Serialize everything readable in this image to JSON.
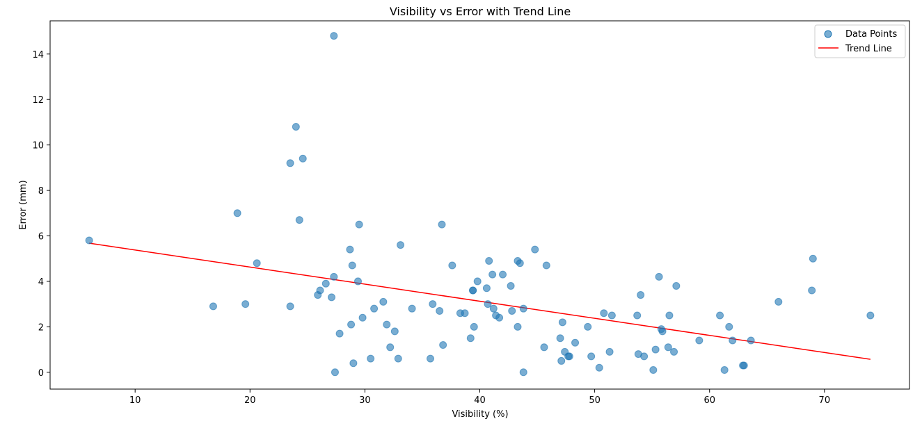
{
  "chart_data": {
    "type": "scatter",
    "title": "Visibility vs Error with Trend Line",
    "xlabel": "Visibility (%)",
    "ylabel": "Error (mm)",
    "xlim": [
      2.6,
      77.4
    ],
    "ylim": [
      -0.74,
      15.46
    ],
    "x_ticks": [
      10,
      20,
      30,
      40,
      50,
      60,
      70
    ],
    "y_ticks": [
      0,
      2,
      4,
      6,
      8,
      10,
      12,
      14
    ],
    "grid": false,
    "legend_position": "top-right",
    "colors": {
      "points": "#1f77b4",
      "trend": "#ff0000"
    },
    "series": [
      {
        "name": "Data Points",
        "kind": "scatter",
        "points": [
          [
            6.0,
            5.8
          ],
          [
            16.8,
            2.9
          ],
          [
            18.9,
            7.0
          ],
          [
            19.6,
            3.0
          ],
          [
            20.6,
            4.8
          ],
          [
            23.5,
            9.2
          ],
          [
            23.5,
            2.9
          ],
          [
            24.0,
            10.8
          ],
          [
            24.3,
            6.7
          ],
          [
            24.6,
            9.4
          ],
          [
            25.9,
            3.4
          ],
          [
            26.1,
            3.6
          ],
          [
            26.6,
            3.9
          ],
          [
            27.1,
            3.3
          ],
          [
            27.3,
            4.2
          ],
          [
            27.3,
            14.8
          ],
          [
            27.4,
            0.0
          ],
          [
            27.8,
            1.7
          ],
          [
            28.7,
            5.4
          ],
          [
            28.8,
            2.1
          ],
          [
            28.9,
            4.7
          ],
          [
            29.0,
            0.4
          ],
          [
            29.4,
            4.0
          ],
          [
            29.5,
            6.5
          ],
          [
            29.8,
            2.4
          ],
          [
            30.5,
            0.6
          ],
          [
            30.8,
            2.8
          ],
          [
            31.6,
            3.1
          ],
          [
            31.9,
            2.1
          ],
          [
            32.2,
            1.1
          ],
          [
            32.6,
            1.8
          ],
          [
            32.9,
            0.6
          ],
          [
            33.1,
            5.6
          ],
          [
            34.1,
            2.8
          ],
          [
            35.7,
            0.6
          ],
          [
            35.9,
            3.0
          ],
          [
            36.5,
            2.7
          ],
          [
            36.7,
            6.5
          ],
          [
            36.8,
            1.2
          ],
          [
            37.6,
            4.7
          ],
          [
            38.3,
            2.6
          ],
          [
            38.7,
            2.6
          ],
          [
            39.2,
            1.5
          ],
          [
            39.4,
            3.6
          ],
          [
            39.4,
            3.6
          ],
          [
            39.5,
            2.0
          ],
          [
            39.8,
            4.0
          ],
          [
            40.6,
            3.7
          ],
          [
            40.7,
            3.0
          ],
          [
            40.8,
            4.9
          ],
          [
            41.1,
            4.3
          ],
          [
            41.2,
            2.8
          ],
          [
            41.4,
            2.5
          ],
          [
            41.7,
            2.4
          ],
          [
            42.0,
            4.3
          ],
          [
            42.7,
            3.8
          ],
          [
            42.8,
            2.7
          ],
          [
            43.3,
            2.0
          ],
          [
            43.3,
            4.9
          ],
          [
            43.5,
            4.8
          ],
          [
            43.8,
            0.0
          ],
          [
            43.8,
            2.8
          ],
          [
            44.8,
            5.4
          ],
          [
            45.6,
            1.1
          ],
          [
            45.8,
            4.7
          ],
          [
            47.0,
            1.5
          ],
          [
            47.1,
            0.5
          ],
          [
            47.2,
            2.2
          ],
          [
            47.4,
            0.9
          ],
          [
            47.7,
            0.7
          ],
          [
            47.8,
            0.7
          ],
          [
            48.3,
            1.3
          ],
          [
            49.4,
            2.0
          ],
          [
            49.7,
            0.7
          ],
          [
            50.4,
            0.2
          ],
          [
            50.8,
            2.6
          ],
          [
            51.3,
            0.9
          ],
          [
            51.5,
            2.5
          ],
          [
            53.7,
            2.5
          ],
          [
            53.8,
            0.8
          ],
          [
            54.0,
            3.4
          ],
          [
            54.3,
            0.7
          ],
          [
            55.1,
            0.1
          ],
          [
            55.3,
            1.0
          ],
          [
            55.6,
            4.2
          ],
          [
            55.8,
            1.9
          ],
          [
            55.9,
            1.8
          ],
          [
            56.4,
            1.1
          ],
          [
            56.5,
            2.5
          ],
          [
            56.9,
            0.9
          ],
          [
            57.1,
            3.8
          ],
          [
            59.1,
            1.4
          ],
          [
            60.9,
            2.5
          ],
          [
            61.3,
            0.1
          ],
          [
            61.7,
            2.0
          ],
          [
            62.0,
            1.4
          ],
          [
            62.9,
            0.3
          ],
          [
            63.0,
            0.3
          ],
          [
            63.6,
            1.4
          ],
          [
            66.0,
            3.1
          ],
          [
            68.9,
            3.6
          ],
          [
            69.0,
            5.0
          ],
          [
            74.0,
            2.5
          ]
        ]
      },
      {
        "name": "Trend Line",
        "kind": "line",
        "points": [
          [
            6.0,
            5.68
          ],
          [
            74.0,
            0.57
          ]
        ]
      }
    ]
  }
}
